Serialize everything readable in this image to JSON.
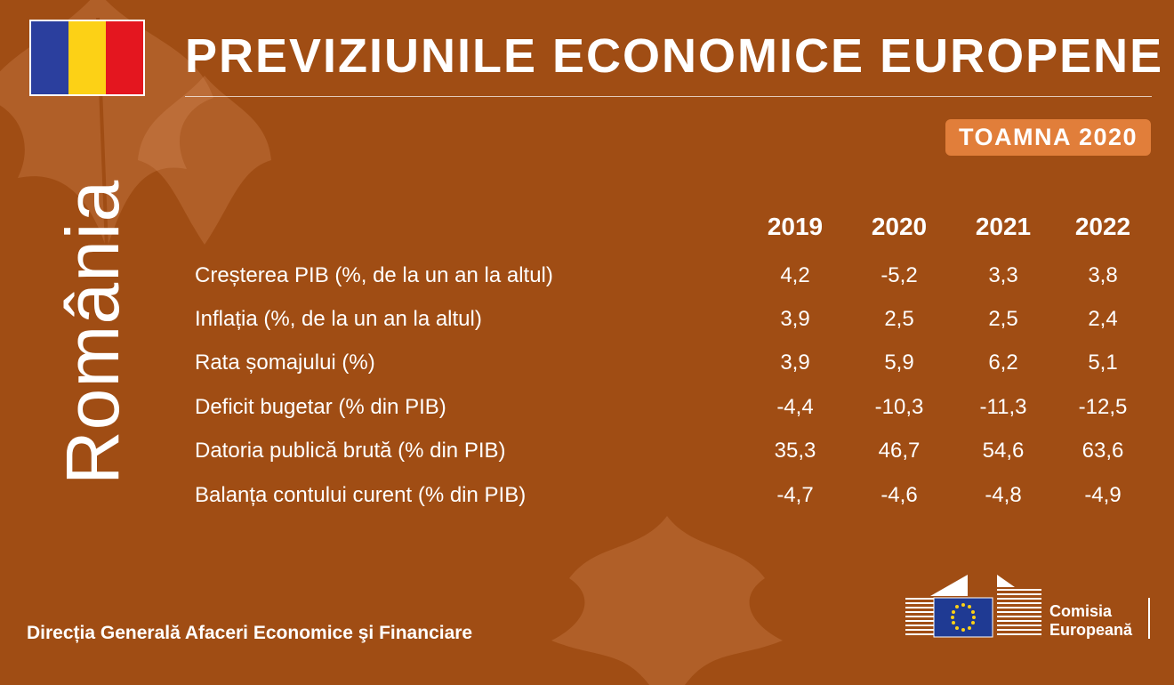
{
  "header": {
    "title": "PREVIZIUNILE ECONOMICE EUROPENE",
    "badge": "TOAMNA 2020",
    "country": "România"
  },
  "flag_colors": [
    "#2B3F9E",
    "#FCD116",
    "#E4161F"
  ],
  "colors": {
    "background": "#A04D14",
    "badge": "#E17E3A",
    "text": "#FFFFFF"
  },
  "table": {
    "years": [
      "2019",
      "2020",
      "2021",
      "2022"
    ],
    "rows": [
      {
        "label": "Creșterea PIB (%, de la un an la altul)",
        "values": [
          "4,2",
          "-5,2",
          "3,3",
          "3,8"
        ]
      },
      {
        "label": "Inflația (%, de la un an la altul)",
        "values": [
          "3,9",
          "2,5",
          "2,5",
          "2,4"
        ]
      },
      {
        "label": "Rata șomajului (%)",
        "values": [
          "3,9",
          "5,9",
          "6,2",
          "5,1"
        ]
      },
      {
        "label": "Deficit bugetar (% din PIB)",
        "values": [
          "-4,4",
          "-10,3",
          "-11,3",
          "-12,5"
        ]
      },
      {
        "label": "Datoria publică brută (% din PIB)",
        "values": [
          "35,3",
          "46,7",
          "54,6",
          "63,6"
        ]
      },
      {
        "label": "Balanța contului curent (% din PIB)",
        "values": [
          "-4,7",
          "-4,6",
          "-4,8",
          "-4,9"
        ]
      }
    ]
  },
  "footer": {
    "department": "Direcția Generală Afaceri Economice şi Financiare",
    "logo_line1": "Comisia",
    "logo_line2": "Europeană",
    "logo_icon": "european-commission-logo"
  }
}
